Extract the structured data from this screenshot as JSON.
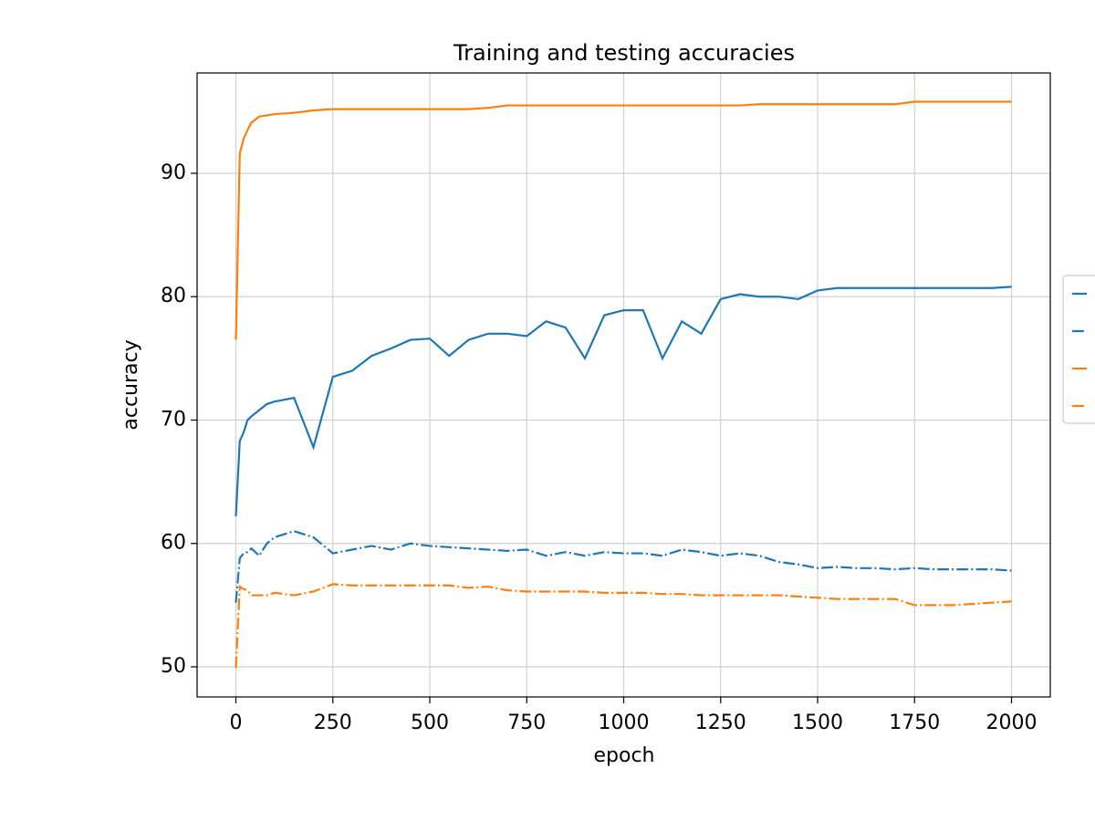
{
  "chart_data": {
    "type": "line",
    "title": "Training and testing accuracies",
    "xlabel": "epoch",
    "ylabel": "accuracy",
    "x": [
      0,
      10,
      20,
      30,
      40,
      60,
      80,
      100,
      150,
      200,
      250,
      300,
      350,
      400,
      450,
      500,
      550,
      600,
      650,
      700,
      750,
      800,
      850,
      900,
      950,
      1000,
      1050,
      1100,
      1150,
      1200,
      1250,
      1300,
      1350,
      1400,
      1450,
      1500,
      1550,
      1600,
      1650,
      1700,
      1750,
      1800,
      1850,
      1900,
      1950,
      2000
    ],
    "series": [
      {
        "color": "#1f77b4",
        "dash": "solid",
        "values": [
          62.2,
          68.3,
          69,
          70,
          70.3,
          70.8,
          71.3,
          71.5,
          71.8,
          67.8,
          73.5,
          74,
          75.2,
          75.8,
          76.5,
          76.6,
          75.2,
          76.5,
          77,
          77,
          76.8,
          78,
          77.5,
          75,
          78.5,
          78.9,
          78.9,
          75,
          78,
          77,
          79.8,
          80.2,
          80,
          80,
          79.8,
          80.5,
          80.7,
          80.7,
          80.7,
          80.7,
          80.7,
          80.7,
          80.7,
          80.7,
          80.7,
          80.8
        ]
      },
      {
        "color": "#1f77b4",
        "dash": "dashdot",
        "values": [
          55.2,
          58.8,
          59.2,
          59.3,
          59.6,
          59,
          60,
          60.5,
          61,
          60.5,
          59.2,
          59.5,
          59.8,
          59.5,
          60,
          59.8,
          59.7,
          59.6,
          59.5,
          59.4,
          59.5,
          59,
          59.3,
          59,
          59.3,
          59.2,
          59.2,
          59,
          59.5,
          59.3,
          59,
          59.2,
          59,
          58.5,
          58.3,
          58,
          58.1,
          58,
          58,
          57.9,
          58,
          57.9,
          57.9,
          57.9,
          57.9,
          57.8
        ]
      },
      {
        "color": "#ff7f0e",
        "dash": "solid",
        "values": [
          76.5,
          91.6,
          92.8,
          93.5,
          94.1,
          94.6,
          94.7,
          94.8,
          94.9,
          95.1,
          95.2,
          95.2,
          95.2,
          95.2,
          95.2,
          95.2,
          95.2,
          95.2,
          95.3,
          95.5,
          95.5,
          95.5,
          95.5,
          95.5,
          95.5,
          95.5,
          95.5,
          95.5,
          95.5,
          95.5,
          95.5,
          95.5,
          95.6,
          95.6,
          95.6,
          95.6,
          95.6,
          95.6,
          95.6,
          95.6,
          95.8,
          95.8,
          95.8,
          95.8,
          95.8,
          95.8
        ]
      },
      {
        "color": "#ff7f0e",
        "dash": "dashdot",
        "values": [
          49.9,
          56.5,
          56.3,
          56.2,
          55.8,
          55.8,
          55.8,
          56,
          55.8,
          56.1,
          56.7,
          56.6,
          56.6,
          56.6,
          56.6,
          56.6,
          56.6,
          56.4,
          56.5,
          56.2,
          56.1,
          56.1,
          56.1,
          56.1,
          56,
          56,
          56,
          55.9,
          55.9,
          55.8,
          55.8,
          55.8,
          55.8,
          55.8,
          55.7,
          55.6,
          55.5,
          55.5,
          55.5,
          55.5,
          55,
          55,
          55,
          55.1,
          55.2,
          55.3
        ]
      }
    ],
    "xlim": [
      -100,
      2100
    ],
    "xticks": [
      0,
      250,
      500,
      750,
      1000,
      1250,
      1500,
      1750,
      2000
    ],
    "ylim": [
      47.56,
      98.13
    ],
    "yticks": [
      50,
      60,
      70,
      80,
      90
    ],
    "grid": true,
    "legend": "right"
  }
}
